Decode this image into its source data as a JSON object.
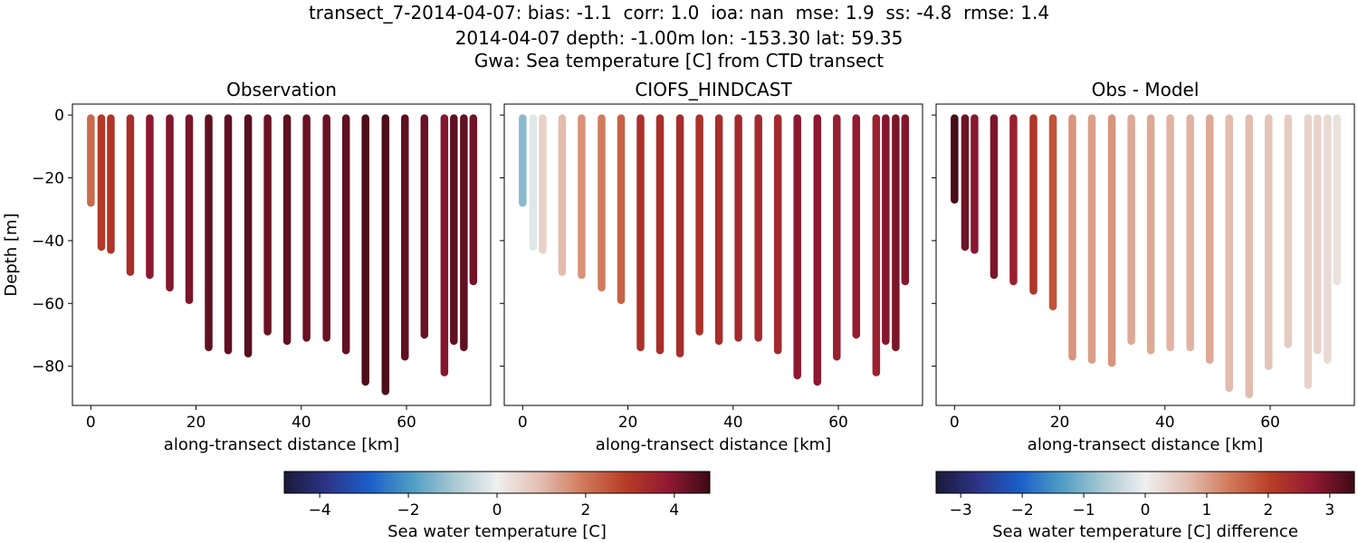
{
  "figure": {
    "title_lines": [
      "transect_7-2014-04-07: bias: -1.1  corr: 1.0  ioa: nan  mse: 1.9  ss: -4.8  rmse: 1.4",
      "2014-04-07 depth: -1.00m lon: -153.30 lat: 59.35",
      "Gwa: Sea temperature [C] from CTD transect"
    ]
  },
  "chart_data": [
    {
      "type": "scatter",
      "title": "Observation",
      "xlabel": "along-transect distance [km]",
      "ylabel": "Depth [m]",
      "xlim": [
        -3.5,
        76
      ],
      "ylim": [
        -92.5,
        3.5
      ],
      "xticks": [
        0,
        20,
        40,
        60
      ],
      "yticks": [
        0,
        -20,
        -40,
        -60,
        -80
      ],
      "colormap": "balance",
      "clim": [
        -4.8,
        4.8
      ],
      "profiles": [
        {
          "x": 0.0,
          "bottom": -28,
          "value": 2.2
        },
        {
          "x": 2.0,
          "bottom": -42,
          "value": 3.0
        },
        {
          "x": 3.8,
          "bottom": -43,
          "value": 3.1
        },
        {
          "x": 7.5,
          "bottom": -50,
          "value": 3.3
        },
        {
          "x": 11.2,
          "bottom": -51,
          "value": 3.9
        },
        {
          "x": 15.0,
          "bottom": -55,
          "value": 4.0
        },
        {
          "x": 18.7,
          "bottom": -59,
          "value": 4.1
        },
        {
          "x": 22.4,
          "bottom": -74,
          "value": 4.4
        },
        {
          "x": 26.1,
          "bottom": -75,
          "value": 4.4
        },
        {
          "x": 29.9,
          "bottom": -76,
          "value": 4.5
        },
        {
          "x": 33.6,
          "bottom": -69,
          "value": 4.3
        },
        {
          "x": 37.3,
          "bottom": -72,
          "value": 4.4
        },
        {
          "x": 41.0,
          "bottom": -71,
          "value": 4.3
        },
        {
          "x": 44.8,
          "bottom": -71,
          "value": 4.3
        },
        {
          "x": 48.5,
          "bottom": -75,
          "value": 4.4
        },
        {
          "x": 52.2,
          "bottom": -85,
          "value": 4.6
        },
        {
          "x": 56.0,
          "bottom": -88,
          "value": 4.6
        },
        {
          "x": 59.7,
          "bottom": -77,
          "value": 4.4
        },
        {
          "x": 63.4,
          "bottom": -70,
          "value": 4.3
        },
        {
          "x": 67.2,
          "bottom": -82,
          "value": 4.0
        },
        {
          "x": 69.0,
          "bottom": -72,
          "value": 4.4
        },
        {
          "x": 70.9,
          "bottom": -74,
          "value": 4.4
        },
        {
          "x": 72.7,
          "bottom": -53,
          "value": 4.2
        }
      ]
    },
    {
      "type": "scatter",
      "title": "CIOFS_HINDCAST",
      "xlabel": "along-transect distance [km]",
      "ylabel": "",
      "xlim": [
        -3.5,
        76
      ],
      "ylim": [
        -92.5,
        3.5
      ],
      "xticks": [
        0,
        20,
        40,
        60
      ],
      "yticks": [
        0,
        -20,
        -40,
        -60,
        -80
      ],
      "colormap": "balance",
      "clim": [
        -4.8,
        4.8
      ],
      "profiles": [
        {
          "x": 0.0,
          "bottom": -28,
          "value": -1.3
        },
        {
          "x": 2.0,
          "bottom": -42,
          "value": -0.2
        },
        {
          "x": 3.8,
          "bottom": -43,
          "value": 0.6
        },
        {
          "x": 7.5,
          "bottom": -50,
          "value": 1.0
        },
        {
          "x": 11.2,
          "bottom": -51,
          "value": 1.6
        },
        {
          "x": 15.0,
          "bottom": -55,
          "value": 1.9
        },
        {
          "x": 18.7,
          "bottom": -59,
          "value": 2.3
        },
        {
          "x": 22.4,
          "bottom": -74,
          "value": 3.2
        },
        {
          "x": 26.1,
          "bottom": -75,
          "value": 3.3
        },
        {
          "x": 29.9,
          "bottom": -76,
          "value": 3.3
        },
        {
          "x": 33.6,
          "bottom": -69,
          "value": 3.2
        },
        {
          "x": 37.3,
          "bottom": -72,
          "value": 3.3
        },
        {
          "x": 41.0,
          "bottom": -71,
          "value": 3.4
        },
        {
          "x": 44.8,
          "bottom": -71,
          "value": 3.4
        },
        {
          "x": 48.5,
          "bottom": -75,
          "value": 3.4
        },
        {
          "x": 52.2,
          "bottom": -83,
          "value": 3.9
        },
        {
          "x": 56.0,
          "bottom": -85,
          "value": 3.9
        },
        {
          "x": 59.7,
          "bottom": -77,
          "value": 3.7
        },
        {
          "x": 63.4,
          "bottom": -70,
          "value": 3.8
        },
        {
          "x": 67.2,
          "bottom": -82,
          "value": 3.6
        },
        {
          "x": 69.0,
          "bottom": -72,
          "value": 4.0
        },
        {
          "x": 70.9,
          "bottom": -74,
          "value": 4.1
        },
        {
          "x": 72.7,
          "bottom": -53,
          "value": 4.0
        }
      ]
    },
    {
      "type": "scatter",
      "title": "Obs - Model",
      "xlabel": "along-transect distance [km]",
      "ylabel": "",
      "xlim": [
        -3.5,
        76
      ],
      "ylim": [
        -92.5,
        3.5
      ],
      "xticks": [
        0,
        20,
        40,
        60
      ],
      "yticks": [
        0,
        -20,
        -40,
        -60,
        -80
      ],
      "colormap": "balance",
      "clim": [
        -3.4,
        3.4
      ],
      "profiles": [
        {
          "x": 0.0,
          "bottom": -27,
          "value": 3.3
        },
        {
          "x": 2.0,
          "bottom": -42,
          "value": 3.0
        },
        {
          "x": 3.8,
          "bottom": -43,
          "value": 2.8
        },
        {
          "x": 7.5,
          "bottom": -51,
          "value": 2.9
        },
        {
          "x": 11.2,
          "bottom": -53,
          "value": 2.6
        },
        {
          "x": 15.0,
          "bottom": -56,
          "value": 2.2
        },
        {
          "x": 18.7,
          "bottom": -61,
          "value": 1.8
        },
        {
          "x": 22.4,
          "bottom": -77,
          "value": 1.1
        },
        {
          "x": 26.1,
          "bottom": -78,
          "value": 1.0
        },
        {
          "x": 29.9,
          "bottom": -79,
          "value": 1.1
        },
        {
          "x": 33.6,
          "bottom": -72,
          "value": 0.9
        },
        {
          "x": 37.3,
          "bottom": -75,
          "value": 0.9
        },
        {
          "x": 41.0,
          "bottom": -74,
          "value": 0.8
        },
        {
          "x": 44.8,
          "bottom": -74,
          "value": 0.8
        },
        {
          "x": 48.5,
          "bottom": -78,
          "value": 0.9
        },
        {
          "x": 52.2,
          "bottom": -87,
          "value": 0.7
        },
        {
          "x": 56.0,
          "bottom": -89,
          "value": 0.7
        },
        {
          "x": 59.7,
          "bottom": -80,
          "value": 0.6
        },
        {
          "x": 63.4,
          "bottom": -73,
          "value": 0.5
        },
        {
          "x": 67.2,
          "bottom": -86,
          "value": 0.4
        },
        {
          "x": 69.0,
          "bottom": -75,
          "value": 0.4
        },
        {
          "x": 70.9,
          "bottom": -78,
          "value": 0.3
        },
        {
          "x": 72.7,
          "bottom": -53,
          "value": 0.2
        }
      ]
    }
  ],
  "colorbars": [
    {
      "label": "Sea water temperature [C]",
      "range": [
        -4.8,
        4.8
      ],
      "ticks": [
        -4,
        -2,
        0,
        2,
        4
      ]
    },
    {
      "label": "Sea water temperature [C] difference",
      "range": [
        -3.4,
        3.4
      ],
      "ticks": [
        -3,
        -2,
        -1,
        0,
        1,
        2,
        3
      ]
    }
  ],
  "colormap_stops": [
    "#1a1a3a",
    "#2d3488",
    "#1a5fc9",
    "#4f9dc4",
    "#a9c9d3",
    "#efefef",
    "#e3bfb1",
    "#d17b5c",
    "#b83d26",
    "#921a32",
    "#3c0a15"
  ]
}
